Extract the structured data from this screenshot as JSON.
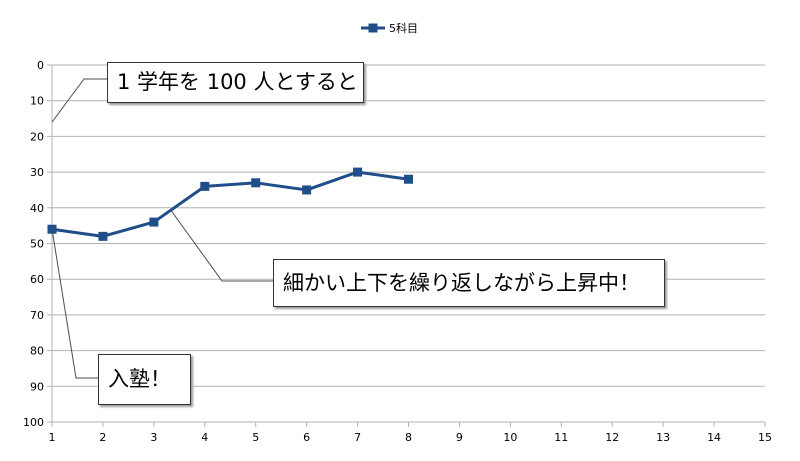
{
  "chart_data": {
    "type": "line",
    "legend": {
      "position": "top-center",
      "entries": [
        "5科目"
      ]
    },
    "x_axis": {
      "min": 1,
      "max": 15,
      "ticks": [
        1,
        2,
        3,
        4,
        5,
        6,
        7,
        8,
        9,
        10,
        11,
        12,
        13,
        14,
        15
      ]
    },
    "y_axis": {
      "min": 0,
      "max": 100,
      "inverted": true,
      "ticks": [
        0,
        10,
        20,
        30,
        40,
        50,
        60,
        70,
        80,
        90,
        100
      ]
    },
    "grid": {
      "horizontal": true,
      "vertical": false
    },
    "series": [
      {
        "name": "5科目",
        "color": "#1f4e8a",
        "marker": "square",
        "x": [
          1,
          2,
          3,
          4,
          5,
          6,
          7,
          8
        ],
        "y": [
          46,
          48,
          44,
          34,
          33,
          35,
          30,
          32
        ]
      }
    ],
    "annotations": [
      {
        "text": "1 学年を 100 人とすると",
        "point": {
          "x": 1,
          "y": 16
        }
      },
      {
        "text": "細かい上下を繰り返しながら上昇中！",
        "point": {
          "x": 3.35,
          "y": 41
        }
      },
      {
        "text": "入塾！",
        "point": {
          "x": 1,
          "y": 46
        }
      }
    ]
  }
}
